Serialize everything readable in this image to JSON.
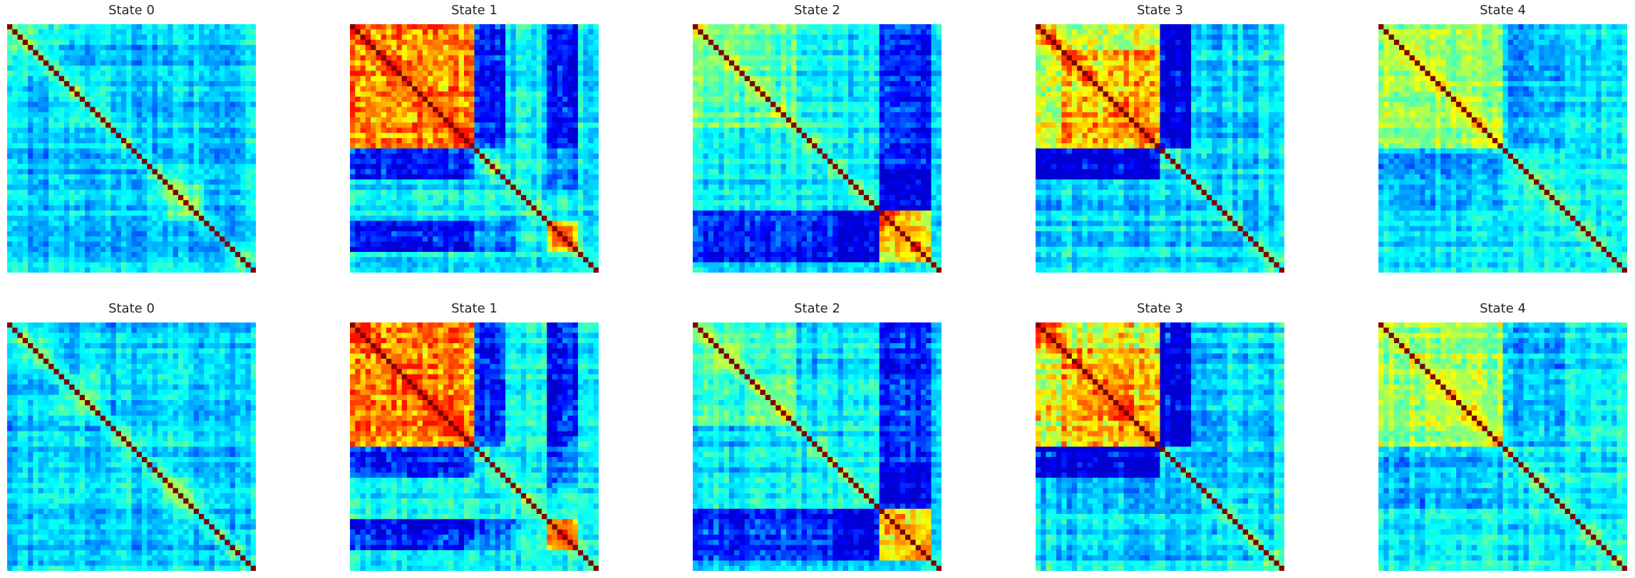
{
  "chart_data": [
    {
      "type": "heatmap",
      "title": "State 0",
      "colormap": "jet",
      "diagonal": "max",
      "regime": "diffuse"
    },
    {
      "type": "heatmap",
      "title": "State 1",
      "colormap": "jet",
      "diagonal": "max",
      "regime": "block-strong"
    },
    {
      "type": "heatmap",
      "title": "State 2",
      "colormap": "jet",
      "diagonal": "max",
      "regime": "lower-block"
    },
    {
      "type": "heatmap",
      "title": "State 3",
      "colormap": "jet",
      "diagonal": "max",
      "regime": "block-upper"
    },
    {
      "type": "heatmap",
      "title": "State 4",
      "colormap": "jet",
      "diagonal": "max",
      "regime": "mild"
    },
    {
      "type": "heatmap",
      "title": "State 0",
      "colormap": "jet",
      "diagonal": "max",
      "regime": "diffuse"
    },
    {
      "type": "heatmap",
      "title": "State 1",
      "colormap": "jet",
      "diagonal": "max",
      "regime": "block-strong"
    },
    {
      "type": "heatmap",
      "title": "State 2",
      "colormap": "jet",
      "diagonal": "max",
      "regime": "lower-block"
    },
    {
      "type": "heatmap",
      "title": "State 3",
      "colormap": "jet",
      "diagonal": "max",
      "regime": "block-upper"
    },
    {
      "type": "heatmap",
      "title": "State 4",
      "colormap": "jet",
      "diagonal": "max",
      "regime": "mild"
    }
  ]
}
